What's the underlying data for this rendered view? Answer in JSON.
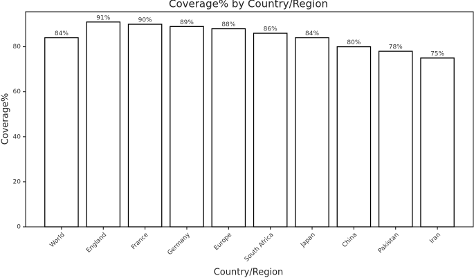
{
  "chart_data": {
    "type": "bar",
    "title": "Coverage% by Country/Region",
    "x_label": "Country/Region",
    "y_label": "Coverage%",
    "categories": [
      "World",
      "England",
      "France",
      "Germany",
      "Europe",
      "South Africa",
      "Japan",
      "China",
      "Pakistan",
      "Iran"
    ],
    "values": [
      84,
      91,
      90,
      89,
      88,
      86,
      84,
      80,
      78,
      75
    ],
    "value_labels": [
      "84%",
      "91%",
      "90%",
      "89%",
      "88%",
      "86%",
      "84%",
      "80%",
      "78%",
      "75%"
    ],
    "color": "#ffffff",
    "edgecolor": "#000000",
    "ylim": [
      0,
      95.55
    ],
    "yticks": [
      0,
      20,
      40,
      60,
      80
    ],
    "grid": false
  }
}
